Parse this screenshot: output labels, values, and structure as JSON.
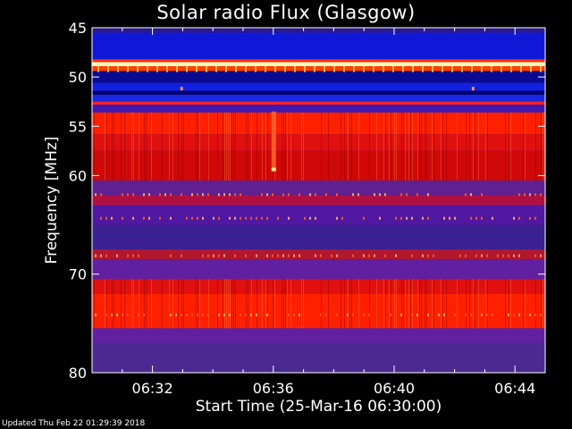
{
  "chart_data": {
    "type": "heatmap",
    "title": "Solar radio Flux (Glasgow)",
    "ylabel": "Frequency [MHz]",
    "xlabel": "Start Time (25-Mar-16 06:30:00)",
    "x_unit": "minutes after 06:30",
    "xlim": [
      0,
      15
    ],
    "ylim": [
      45,
      80
    ],
    "x_ticks": [
      {
        "value": 2,
        "label": "06:32"
      },
      {
        "value": 6,
        "label": "06:36"
      },
      {
        "value": 10,
        "label": "06:40"
      },
      {
        "value": 14,
        "label": "06:44"
      }
    ],
    "y_ticks": [
      {
        "value": 45,
        "label": "45"
      },
      {
        "value": 50,
        "label": "50"
      },
      {
        "value": 55,
        "label": "55"
      },
      {
        "value": 60,
        "label": "60"
      },
      {
        "value": 70,
        "label": "70"
      },
      {
        "value": 80,
        "label": "80"
      }
    ],
    "bands": [
      {
        "from": 45.0,
        "to": 45.5,
        "color": "#2a1a8a"
      },
      {
        "from": 45.5,
        "to": 48.2,
        "color": "#1018d8"
      },
      {
        "from": 48.2,
        "to": 48.5,
        "color": "#ff3000"
      },
      {
        "from": 48.5,
        "to": 48.9,
        "color": "#ffffc0"
      },
      {
        "from": 48.9,
        "to": 49.4,
        "color": "#ff4000"
      },
      {
        "from": 49.4,
        "to": 50.6,
        "color": "#0a0a90"
      },
      {
        "from": 50.6,
        "to": 51.4,
        "color": "#1020e0"
      },
      {
        "from": 51.4,
        "to": 51.8,
        "color": "#000070"
      },
      {
        "from": 51.8,
        "to": 52.5,
        "color": "#1828e0"
      },
      {
        "from": 52.5,
        "to": 52.8,
        "color": "#ff2020"
      },
      {
        "from": 52.8,
        "to": 53.6,
        "color": "#4018b0"
      },
      {
        "from": 53.6,
        "to": 55.8,
        "color": "#ff2000"
      },
      {
        "from": 55.8,
        "to": 57.5,
        "color": "#e01010"
      },
      {
        "from": 57.5,
        "to": 60.5,
        "color": "#d00808"
      },
      {
        "from": 60.5,
        "to": 62.0,
        "color": "#602090"
      },
      {
        "from": 62.0,
        "to": 63.0,
        "color": "#b01040"
      },
      {
        "from": 63.0,
        "to": 65.0,
        "color": "#5018a0"
      },
      {
        "from": 65.0,
        "to": 67.5,
        "color": "#3a2090"
      },
      {
        "from": 67.5,
        "to": 68.5,
        "color": "#b01830"
      },
      {
        "from": 68.5,
        "to": 70.5,
        "color": "#6020a0"
      },
      {
        "from": 70.5,
        "to": 72.0,
        "color": "#e01010"
      },
      {
        "from": 72.0,
        "to": 75.5,
        "color": "#ff2000"
      },
      {
        "from": 75.5,
        "to": 77.0,
        "color": "#6020a0"
      },
      {
        "from": 77.0,
        "to": 80.0,
        "color": "#4a2a90"
      }
    ],
    "grid": false
  },
  "footer": "Updated Thu Feb 22 01:29:39 2018"
}
